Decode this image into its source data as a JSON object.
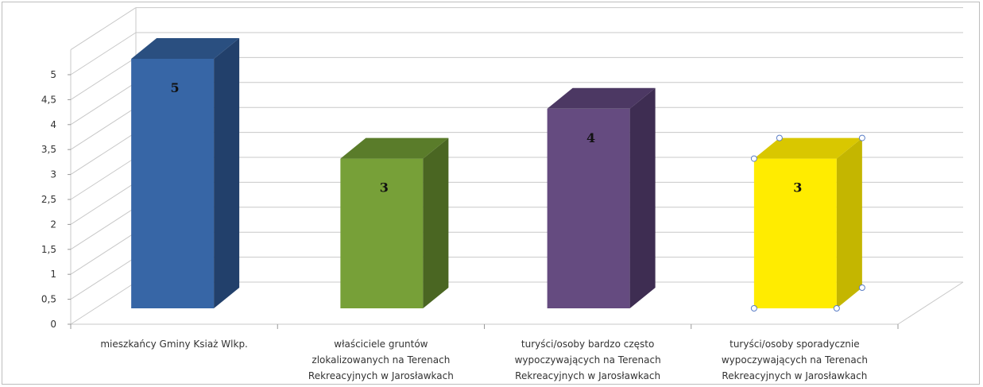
{
  "chart_data": {
    "type": "bar",
    "style": "3d-column",
    "categories": [
      [
        "mieszkańcy Gminy Ksiaż Wlkp."
      ],
      [
        "właściciele gruntów",
        "zlokalizowanych na Terenach",
        "Rekreacyjnych w Jarosławkach"
      ],
      [
        "turyści/osoby bardzo często",
        "wypoczywających na Terenach",
        "Rekreacyjnych w Jarosławkach"
      ],
      [
        "turyści/osoby sporadycznie",
        "wypoczywających na Terenach",
        "Rekreacyjnych w Jarosławkach"
      ]
    ],
    "values": [
      5,
      3,
      4,
      3
    ],
    "data_labels": [
      "5",
      "3",
      "4",
      "3"
    ],
    "colors": [
      {
        "front": "#3766a6",
        "side": "#22406b",
        "top": "#2a4f80"
      },
      {
        "front": "#77a038",
        "side": "#4a6622",
        "top": "#5a7c2a"
      },
      {
        "front": "#654b80",
        "side": "#3e2d52",
        "top": "#4c3863"
      },
      {
        "front": "#ffec00",
        "side": "#c4b600",
        "top": "#d9c700"
      }
    ],
    "ylim": [
      0,
      5
    ],
    "yticks": [
      "0",
      "0,5",
      "1",
      "1,5",
      "2",
      "2,5",
      "3",
      "3,5",
      "4",
      "4,5",
      "5"
    ],
    "grid": true,
    "selected_series_point": 3
  }
}
